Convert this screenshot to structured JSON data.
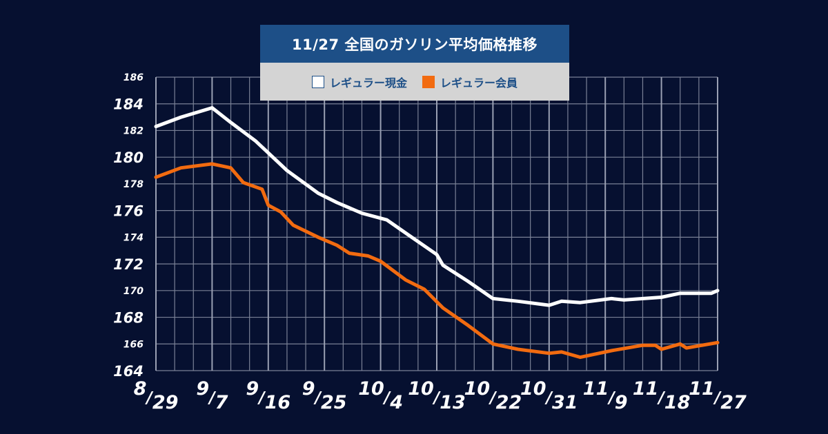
{
  "colors": {
    "background": "#061030",
    "grid": "#7a8196",
    "series1": "#ffffff",
    "series2": "#f26b10",
    "title_bg": "#1d4f87",
    "legend_bg": "#d4d4d4"
  },
  "chart_data": {
    "type": "line",
    "title": "11/27 全国のガソリン平均価格推移",
    "xlabel": "",
    "ylabel": "",
    "ylim": [
      164,
      186
    ],
    "y_ticks": [
      164,
      166,
      168,
      170,
      172,
      174,
      176,
      178,
      180,
      182,
      184,
      186
    ],
    "x_tick_labels": [
      "8/29",
      "9/7",
      "9/16",
      "9/25",
      "10/4",
      "10/13",
      "10/22",
      "10/31",
      "11/9",
      "11/18",
      "11/27"
    ],
    "x_domain": [
      0,
      90
    ],
    "x_tick_positions": [
      0,
      9,
      18,
      27,
      36,
      45,
      54,
      63,
      72,
      81,
      90
    ],
    "grid": true,
    "legend_position": "top-center",
    "series": [
      {
        "name": "レギュラー現金",
        "color": "#ffffff",
        "points": [
          [
            0,
            182.3
          ],
          [
            4,
            183.0
          ],
          [
            9,
            183.7
          ],
          [
            12,
            182.6
          ],
          [
            16,
            181.2
          ],
          [
            21,
            179.0
          ],
          [
            26,
            177.3
          ],
          [
            29,
            176.6
          ],
          [
            33,
            175.8
          ],
          [
            37,
            175.3
          ],
          [
            41,
            174.0
          ],
          [
            45,
            172.7
          ],
          [
            46,
            171.9
          ],
          [
            50,
            170.7
          ],
          [
            54,
            169.4
          ],
          [
            58,
            169.2
          ],
          [
            63,
            168.9
          ],
          [
            65,
            169.2
          ],
          [
            68,
            169.1
          ],
          [
            73,
            169.4
          ],
          [
            75,
            169.3
          ],
          [
            81,
            169.5
          ],
          [
            84,
            169.8
          ],
          [
            87,
            169.8
          ],
          [
            89,
            169.8
          ],
          [
            90,
            170.0
          ]
        ]
      },
      {
        "name": "レギュラー会員",
        "color": "#f26b10",
        "points": [
          [
            0,
            178.5
          ],
          [
            4,
            179.2
          ],
          [
            9,
            179.5
          ],
          [
            12,
            179.2
          ],
          [
            14,
            178.1
          ],
          [
            17,
            177.6
          ],
          [
            18,
            176.4
          ],
          [
            20,
            175.9
          ],
          [
            22,
            174.9
          ],
          [
            26,
            174.0
          ],
          [
            29,
            173.4
          ],
          [
            31,
            172.8
          ],
          [
            34,
            172.6
          ],
          [
            36,
            172.2
          ],
          [
            40,
            170.8
          ],
          [
            43,
            170.1
          ],
          [
            46,
            168.7
          ],
          [
            50,
            167.4
          ],
          [
            54,
            166.0
          ],
          [
            58,
            165.6
          ],
          [
            63,
            165.3
          ],
          [
            65,
            165.4
          ],
          [
            68,
            165.0
          ],
          [
            71,
            165.3
          ],
          [
            73,
            165.5
          ],
          [
            78,
            165.9
          ],
          [
            80,
            165.9
          ],
          [
            81,
            165.6
          ],
          [
            84,
            166.0
          ],
          [
            85,
            165.7
          ],
          [
            90,
            166.1
          ]
        ]
      }
    ]
  }
}
